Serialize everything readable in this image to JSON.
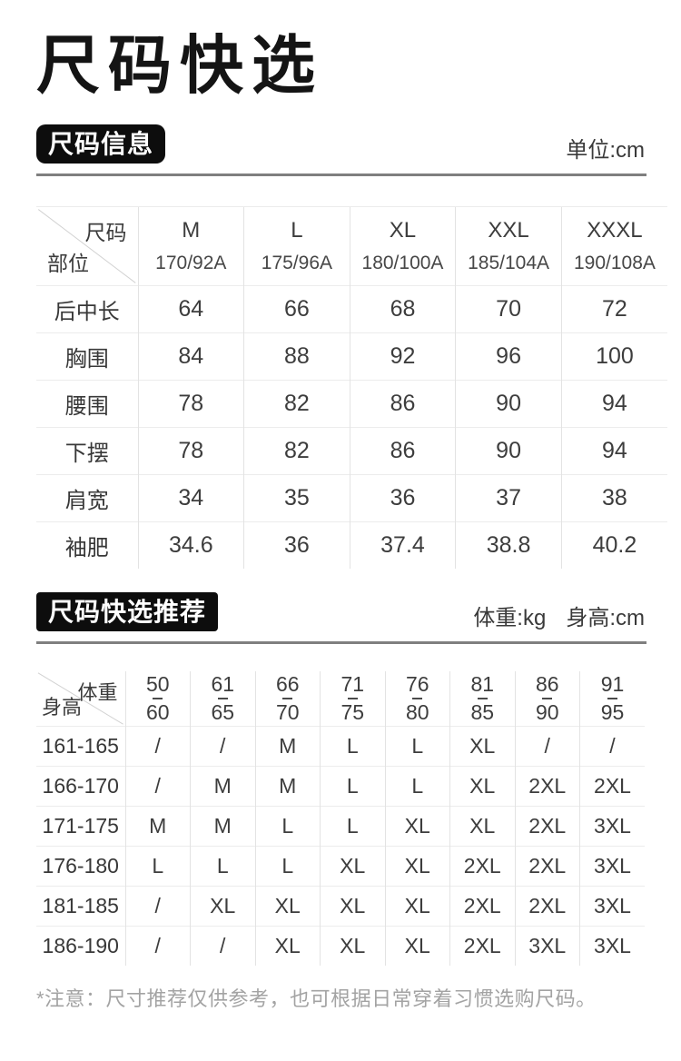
{
  "page": {
    "title": "尺码快选",
    "note": "*注意：尺寸推荐仅供参考，也可根据日常穿着习惯选购尺码。"
  },
  "colors": {
    "badge_bg": "#0d0d0d",
    "badge_text": "#ffffff",
    "rule_gray": "#7f7f7f",
    "grid_line": "#e3e3e3",
    "row_line": "#ececec",
    "body_text": "#3d3d3d",
    "note_text": "#a3a3a3"
  },
  "size_table": {
    "badge": "尺码信息",
    "unit": "单位:cm",
    "corner_top": "尺码",
    "corner_bottom": "部位",
    "columns": [
      {
        "size": "M",
        "spec": "170/92A"
      },
      {
        "size": "L",
        "spec": "175/96A"
      },
      {
        "size": "XL",
        "spec": "180/100A"
      },
      {
        "size": "XXL",
        "spec": "185/104A"
      },
      {
        "size": "XXXL",
        "spec": "190/108A"
      }
    ],
    "rows": [
      {
        "label": "后中长",
        "values": [
          "64",
          "66",
          "68",
          "70",
          "72"
        ]
      },
      {
        "label": "胸围",
        "values": [
          "84",
          "88",
          "92",
          "96",
          "100"
        ]
      },
      {
        "label": "腰围",
        "values": [
          "78",
          "82",
          "86",
          "90",
          "94"
        ]
      },
      {
        "label": "下摆",
        "values": [
          "78",
          "82",
          "86",
          "90",
          "94"
        ]
      },
      {
        "label": "肩宽",
        "values": [
          "34",
          "35",
          "36",
          "37",
          "38"
        ]
      },
      {
        "label": "袖肥",
        "values": [
          "34.6",
          "36",
          "37.4",
          "38.8",
          "40.2"
        ]
      }
    ]
  },
  "reco_table": {
    "badge": "尺码快选推荐",
    "unit_weight": "体重:kg",
    "unit_height": "身高:cm",
    "corner_top": "体重",
    "corner_bottom": "身高",
    "columns": [
      {
        "from": "50",
        "to": "60"
      },
      {
        "from": "61",
        "to": "65"
      },
      {
        "from": "66",
        "to": "70"
      },
      {
        "from": "71",
        "to": "75"
      },
      {
        "from": "76",
        "to": "80"
      },
      {
        "from": "81",
        "to": "85"
      },
      {
        "from": "86",
        "to": "90"
      },
      {
        "from": "91",
        "to": "95"
      }
    ],
    "rows": [
      {
        "label": "161-165",
        "values": [
          "/",
          "/",
          "M",
          "L",
          "L",
          "XL",
          "/",
          "/"
        ]
      },
      {
        "label": "166-170",
        "values": [
          "/",
          "M",
          "M",
          "L",
          "L",
          "XL",
          "2XL",
          "2XL"
        ]
      },
      {
        "label": "171-175",
        "values": [
          "M",
          "M",
          "L",
          "L",
          "XL",
          "XL",
          "2XL",
          "3XL"
        ]
      },
      {
        "label": "176-180",
        "values": [
          "L",
          "L",
          "L",
          "XL",
          "XL",
          "2XL",
          "2XL",
          "3XL"
        ]
      },
      {
        "label": "181-185",
        "values": [
          "/",
          "XL",
          "XL",
          "XL",
          "XL",
          "2XL",
          "2XL",
          "3XL"
        ]
      },
      {
        "label": "186-190",
        "values": [
          "/",
          "/",
          "XL",
          "XL",
          "XL",
          "2XL",
          "3XL",
          "3XL"
        ]
      }
    ]
  }
}
